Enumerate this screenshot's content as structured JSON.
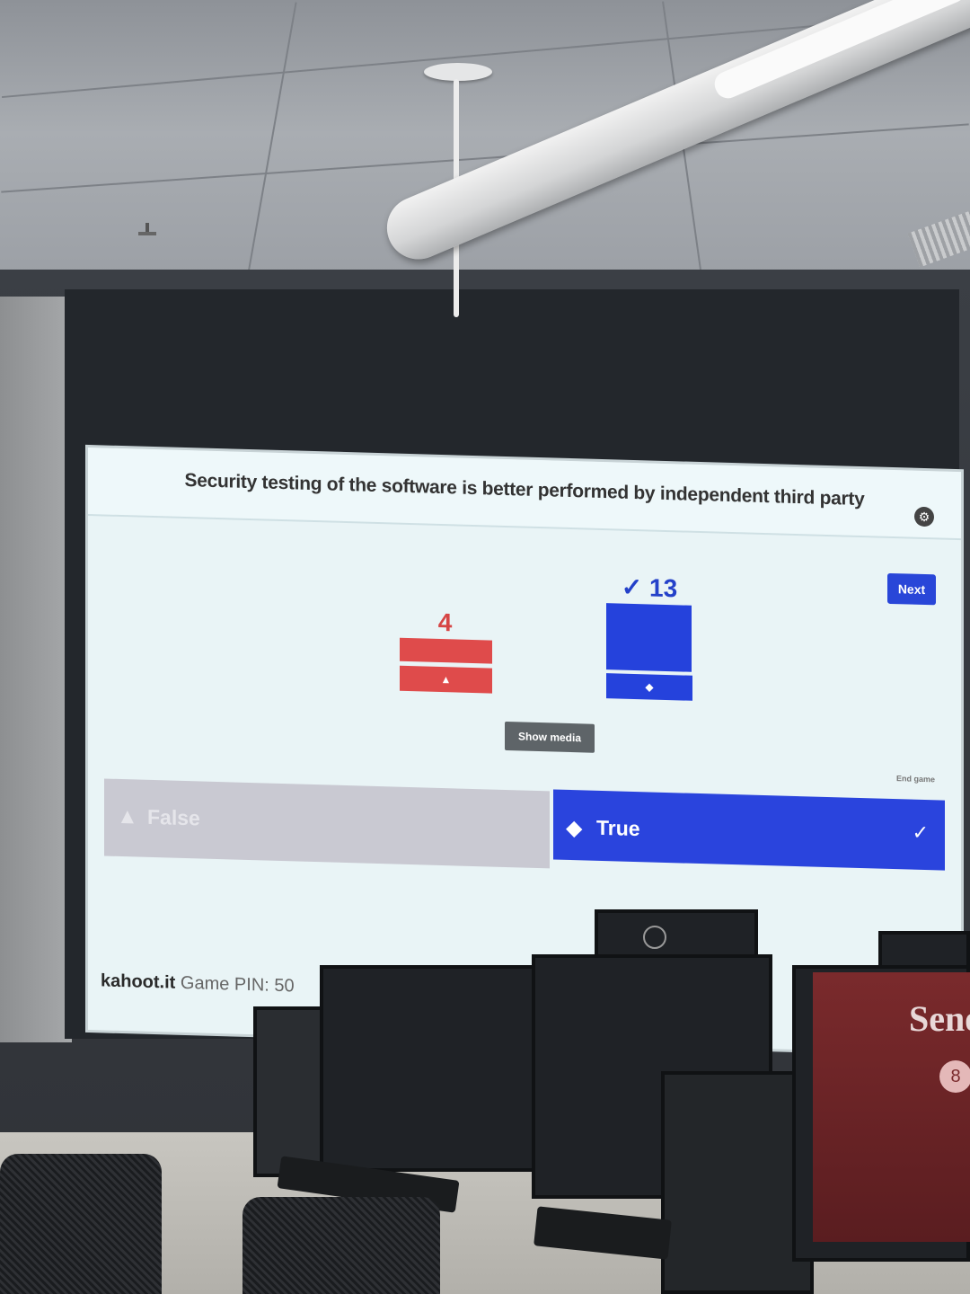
{
  "kahoot": {
    "question": "Security testing of the software is better performed by independent third party",
    "next_label": "Next",
    "show_media_label": "Show media",
    "end_game_label": "End game",
    "answers": [
      {
        "label": "False",
        "symbol": "▲",
        "count": "4",
        "color": "#df4b4b",
        "correct": false
      },
      {
        "label": "True",
        "symbol": "◆",
        "count": "✓ 13",
        "color": "#2542dc",
        "correct": true
      }
    ],
    "correct_check": "✓",
    "footer": {
      "brand": "kahoot.it",
      "pin_label": "Game PIN: 50"
    }
  },
  "room": {
    "monitor_text": "Sene",
    "avatar_glyph": "8"
  }
}
